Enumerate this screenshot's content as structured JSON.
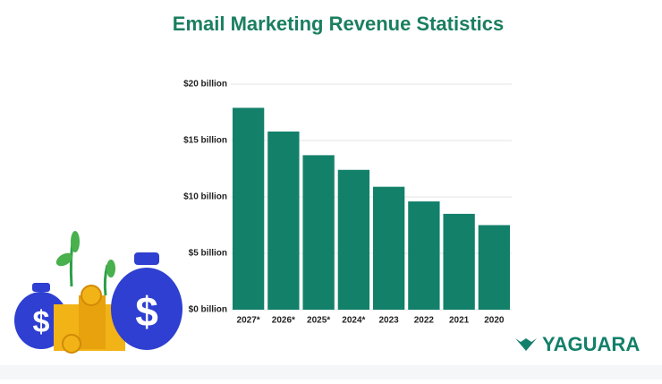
{
  "chart_data": {
    "type": "bar",
    "title": "Email Marketing Revenue Statistics",
    "categories": [
      "2027*",
      "2026*",
      "2025*",
      "2024*",
      "2023",
      "2022",
      "2021",
      "2020"
    ],
    "values": [
      17.9,
      15.8,
      13.7,
      12.4,
      10.9,
      9.6,
      8.5,
      7.5
    ],
    "color": "#13806a",
    "ylim": [
      0,
      20
    ],
    "yticks": [
      {
        "value": 0,
        "label": "$0 billion"
      },
      {
        "value": 5,
        "label": "$5 billion"
      },
      {
        "value": 10,
        "label": "$10 billion"
      },
      {
        "value": 15,
        "label": "$15 billion"
      },
      {
        "value": 20,
        "label": "$20 billion"
      }
    ],
    "grid": true
  },
  "brand": "YAGUARA"
}
